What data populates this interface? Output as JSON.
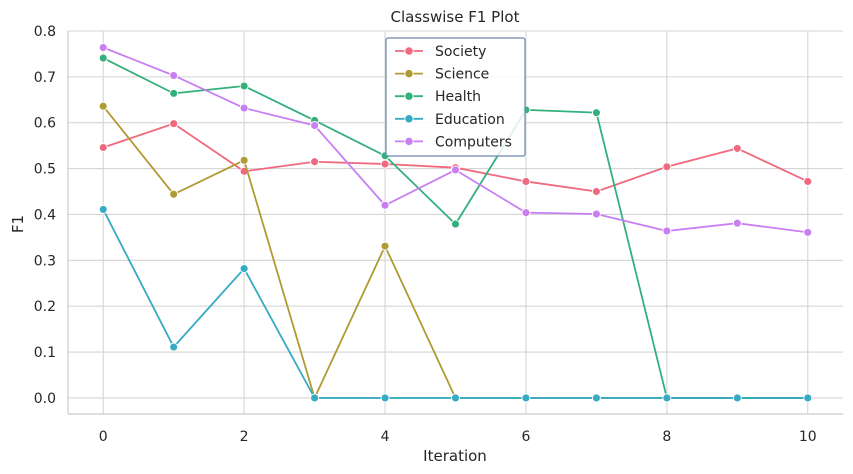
{
  "chart_data": {
    "type": "line",
    "title": "Classwise F1 Plot",
    "xlabel": "Iteration",
    "ylabel": "F1",
    "x": [
      0,
      1,
      2,
      3,
      4,
      5,
      6,
      7,
      8,
      9,
      10
    ],
    "xticks": [
      0,
      2,
      4,
      6,
      8,
      10
    ],
    "yticks": [
      0.0,
      0.1,
      0.2,
      0.3,
      0.4,
      0.5,
      0.6,
      0.7,
      0.8
    ],
    "xlim": [
      -0.5,
      10.5
    ],
    "ylim": [
      -0.035,
      0.8
    ],
    "grid": true,
    "legend_position": "top-center",
    "series": [
      {
        "name": "Society",
        "color": "#f0697f",
        "values": [
          0.546,
          0.598,
          0.494,
          0.515,
          0.51,
          0.502,
          0.472,
          0.45,
          0.504,
          0.544,
          0.472
        ]
      },
      {
        "name": "Science",
        "color": "#b09a34",
        "values": [
          0.636,
          0.444,
          0.518,
          0.0,
          0.331,
          0.0,
          0.0,
          0.0,
          0.0,
          0.0,
          0.0
        ]
      },
      {
        "name": "Health",
        "color": "#33b07c",
        "values": [
          0.741,
          0.664,
          0.68,
          0.605,
          0.528,
          0.379,
          0.628,
          0.622,
          0.0,
          0.0,
          0.0
        ]
      },
      {
        "name": "Education",
        "color": "#37abc4",
        "values": [
          0.411,
          0.111,
          0.282,
          0.0,
          0.0,
          0.0,
          0.0,
          0.0,
          0.0,
          0.0,
          0.0
        ]
      },
      {
        "name": "Computers",
        "color": "#c97ff2",
        "values": [
          0.764,
          0.703,
          0.632,
          0.594,
          0.42,
          0.497,
          0.404,
          0.401,
          0.364,
          0.381,
          0.361
        ]
      }
    ]
  }
}
